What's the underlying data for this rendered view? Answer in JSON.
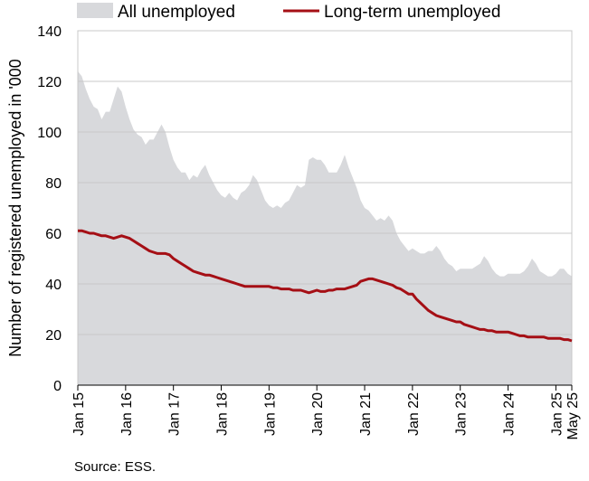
{
  "chart_data": {
    "type": "area",
    "title": "",
    "xlabel": "",
    "ylabel": "Number of registered unemployed in '000",
    "ylim": [
      0,
      140
    ],
    "yticks": [
      0,
      20,
      40,
      60,
      80,
      100,
      120,
      140
    ],
    "xlim": [
      0,
      124
    ],
    "xticks": [
      {
        "x": 0,
        "label": "Jan 15"
      },
      {
        "x": 12,
        "label": "Jan 16"
      },
      {
        "x": 24,
        "label": "Jan 17"
      },
      {
        "x": 36,
        "label": "Jan 18"
      },
      {
        "x": 48,
        "label": "Jan 19"
      },
      {
        "x": 60,
        "label": "Jan 20"
      },
      {
        "x": 72,
        "label": "Jan 21"
      },
      {
        "x": 84,
        "label": "Jan 22"
      },
      {
        "x": 96,
        "label": "Jan 23"
      },
      {
        "x": 108,
        "label": "Jan 24"
      },
      {
        "x": 120,
        "label": "Jan 25"
      },
      {
        "x": 124,
        "label": "May 25"
      }
    ],
    "grid": "horizontal",
    "legend_position": "top",
    "series": [
      {
        "name": "All unemployed",
        "style": "area",
        "color": "#d8d9dc",
        "points": [
          [
            0,
            124
          ],
          [
            1,
            122
          ],
          [
            2,
            117
          ],
          [
            3,
            113
          ],
          [
            4,
            110
          ],
          [
            5,
            109
          ],
          [
            6,
            105
          ],
          [
            7,
            108
          ],
          [
            8,
            108
          ],
          [
            9,
            113
          ],
          [
            10,
            118
          ],
          [
            11,
            116
          ],
          [
            12,
            110
          ],
          [
            13,
            105
          ],
          [
            14,
            101
          ],
          [
            15,
            99
          ],
          [
            16,
            98
          ],
          [
            17,
            95
          ],
          [
            18,
            97
          ],
          [
            19,
            97
          ],
          [
            20,
            100
          ],
          [
            21,
            103
          ],
          [
            22,
            100
          ],
          [
            23,
            94
          ],
          [
            24,
            89
          ],
          [
            25,
            86
          ],
          [
            26,
            84
          ],
          [
            27,
            84
          ],
          [
            28,
            81
          ],
          [
            29,
            83
          ],
          [
            30,
            82
          ],
          [
            31,
            85
          ],
          [
            32,
            87
          ],
          [
            33,
            83
          ],
          [
            34,
            80
          ],
          [
            35,
            77
          ],
          [
            36,
            75
          ],
          [
            37,
            74
          ],
          [
            38,
            76
          ],
          [
            39,
            74
          ],
          [
            40,
            73
          ],
          [
            41,
            76
          ],
          [
            42,
            77
          ],
          [
            43,
            79
          ],
          [
            44,
            83
          ],
          [
            45,
            81
          ],
          [
            46,
            77
          ],
          [
            47,
            73
          ],
          [
            48,
            71
          ],
          [
            49,
            70
          ],
          [
            50,
            71
          ],
          [
            51,
            70
          ],
          [
            52,
            72
          ],
          [
            53,
            73
          ],
          [
            54,
            76
          ],
          [
            55,
            79
          ],
          [
            56,
            78
          ],
          [
            57,
            79
          ],
          [
            58,
            89
          ],
          [
            59,
            90
          ],
          [
            60,
            89
          ],
          [
            61,
            89
          ],
          [
            62,
            87
          ],
          [
            63,
            84
          ],
          [
            64,
            84
          ],
          [
            65,
            84
          ],
          [
            66,
            87
          ],
          [
            67,
            91
          ],
          [
            68,
            86
          ],
          [
            69,
            82
          ],
          [
            70,
            78
          ],
          [
            71,
            73
          ],
          [
            72,
            70
          ],
          [
            73,
            69
          ],
          [
            74,
            67
          ],
          [
            75,
            65
          ],
          [
            76,
            66
          ],
          [
            77,
            65
          ],
          [
            78,
            67
          ],
          [
            79,
            65
          ],
          [
            80,
            60
          ],
          [
            81,
            57
          ],
          [
            82,
            55
          ],
          [
            83,
            53
          ],
          [
            84,
            54
          ],
          [
            85,
            53
          ],
          [
            86,
            52
          ],
          [
            87,
            52
          ],
          [
            88,
            53
          ],
          [
            89,
            53
          ],
          [
            90,
            55
          ],
          [
            91,
            53
          ],
          [
            92,
            50
          ],
          [
            93,
            48
          ],
          [
            94,
            47
          ],
          [
            95,
            45
          ],
          [
            96,
            46
          ],
          [
            97,
            46
          ],
          [
            98,
            46
          ],
          [
            99,
            46
          ],
          [
            100,
            47
          ],
          [
            101,
            48
          ],
          [
            102,
            51
          ],
          [
            103,
            49
          ],
          [
            104,
            46
          ],
          [
            105,
            44
          ],
          [
            106,
            43
          ],
          [
            107,
            43
          ],
          [
            108,
            44
          ],
          [
            109,
            44
          ],
          [
            110,
            44
          ],
          [
            111,
            44
          ],
          [
            112,
            45
          ],
          [
            113,
            47
          ],
          [
            114,
            50
          ],
          [
            115,
            48
          ],
          [
            116,
            45
          ],
          [
            117,
            44
          ],
          [
            118,
            43
          ],
          [
            119,
            43
          ],
          [
            120,
            44
          ],
          [
            121,
            46
          ],
          [
            122,
            46
          ],
          [
            123,
            44
          ],
          [
            124,
            43
          ]
        ]
      },
      {
        "name": "Long-term unemployed",
        "style": "line",
        "color": "#a50f15",
        "points": [
          [
            0,
            61
          ],
          [
            1,
            61
          ],
          [
            2,
            60.5
          ],
          [
            3,
            60
          ],
          [
            4,
            60
          ],
          [
            5,
            59.5
          ],
          [
            6,
            59
          ],
          [
            7,
            59
          ],
          [
            8,
            58.5
          ],
          [
            9,
            58
          ],
          [
            10,
            58.5
          ],
          [
            11,
            59
          ],
          [
            12,
            58.5
          ],
          [
            13,
            58
          ],
          [
            14,
            57
          ],
          [
            15,
            56
          ],
          [
            16,
            55
          ],
          [
            17,
            54
          ],
          [
            18,
            53
          ],
          [
            19,
            52.5
          ],
          [
            20,
            52
          ],
          [
            21,
            52
          ],
          [
            22,
            52
          ],
          [
            23,
            51.5
          ],
          [
            24,
            50
          ],
          [
            25,
            49
          ],
          [
            26,
            48
          ],
          [
            27,
            47
          ],
          [
            28,
            46
          ],
          [
            29,
            45
          ],
          [
            30,
            44.5
          ],
          [
            31,
            44
          ],
          [
            32,
            43.5
          ],
          [
            33,
            43.5
          ],
          [
            34,
            43
          ],
          [
            35,
            42.5
          ],
          [
            36,
            42
          ],
          [
            37,
            41.5
          ],
          [
            38,
            41
          ],
          [
            39,
            40.5
          ],
          [
            40,
            40
          ],
          [
            41,
            39.5
          ],
          [
            42,
            39
          ],
          [
            43,
            39
          ],
          [
            44,
            39
          ],
          [
            45,
            39
          ],
          [
            46,
            39
          ],
          [
            47,
            39
          ],
          [
            48,
            39
          ],
          [
            49,
            38.5
          ],
          [
            50,
            38.5
          ],
          [
            51,
            38
          ],
          [
            52,
            38
          ],
          [
            53,
            38
          ],
          [
            54,
            37.5
          ],
          [
            55,
            37.5
          ],
          [
            56,
            37.5
          ],
          [
            57,
            37
          ],
          [
            58,
            36.5
          ],
          [
            59,
            37
          ],
          [
            60,
            37.5
          ],
          [
            61,
            37
          ],
          [
            62,
            37
          ],
          [
            63,
            37.5
          ],
          [
            64,
            37.5
          ],
          [
            65,
            38
          ],
          [
            66,
            38
          ],
          [
            67,
            38
          ],
          [
            68,
            38.5
          ],
          [
            69,
            39
          ],
          [
            70,
            39.5
          ],
          [
            71,
            41
          ],
          [
            72,
            41.5
          ],
          [
            73,
            42
          ],
          [
            74,
            42
          ],
          [
            75,
            41.5
          ],
          [
            76,
            41
          ],
          [
            77,
            40.5
          ],
          [
            78,
            40
          ],
          [
            79,
            39.5
          ],
          [
            80,
            38.5
          ],
          [
            81,
            38
          ],
          [
            82,
            37
          ],
          [
            83,
            36
          ],
          [
            84,
            36
          ],
          [
            85,
            34
          ],
          [
            86,
            32.5
          ],
          [
            87,
            31
          ],
          [
            88,
            29.5
          ],
          [
            89,
            28.5
          ],
          [
            90,
            27.5
          ],
          [
            91,
            27
          ],
          [
            92,
            26.5
          ],
          [
            93,
            26
          ],
          [
            94,
            25.5
          ],
          [
            95,
            25
          ],
          [
            96,
            25
          ],
          [
            97,
            24
          ],
          [
            98,
            23.5
          ],
          [
            99,
            23
          ],
          [
            100,
            22.5
          ],
          [
            101,
            22
          ],
          [
            102,
            22
          ],
          [
            103,
            21.5
          ],
          [
            104,
            21.5
          ],
          [
            105,
            21
          ],
          [
            106,
            21
          ],
          [
            107,
            21
          ],
          [
            108,
            21
          ],
          [
            109,
            20.5
          ],
          [
            110,
            20
          ],
          [
            111,
            19.5
          ],
          [
            112,
            19.5
          ],
          [
            113,
            19
          ],
          [
            114,
            19
          ],
          [
            115,
            19
          ],
          [
            116,
            19
          ],
          [
            117,
            19
          ],
          [
            118,
            18.5
          ],
          [
            119,
            18.5
          ],
          [
            120,
            18.5
          ],
          [
            121,
            18.5
          ],
          [
            122,
            18
          ],
          [
            123,
            18
          ],
          [
            124,
            17.5
          ]
        ]
      }
    ]
  },
  "source": "Source: ESS."
}
